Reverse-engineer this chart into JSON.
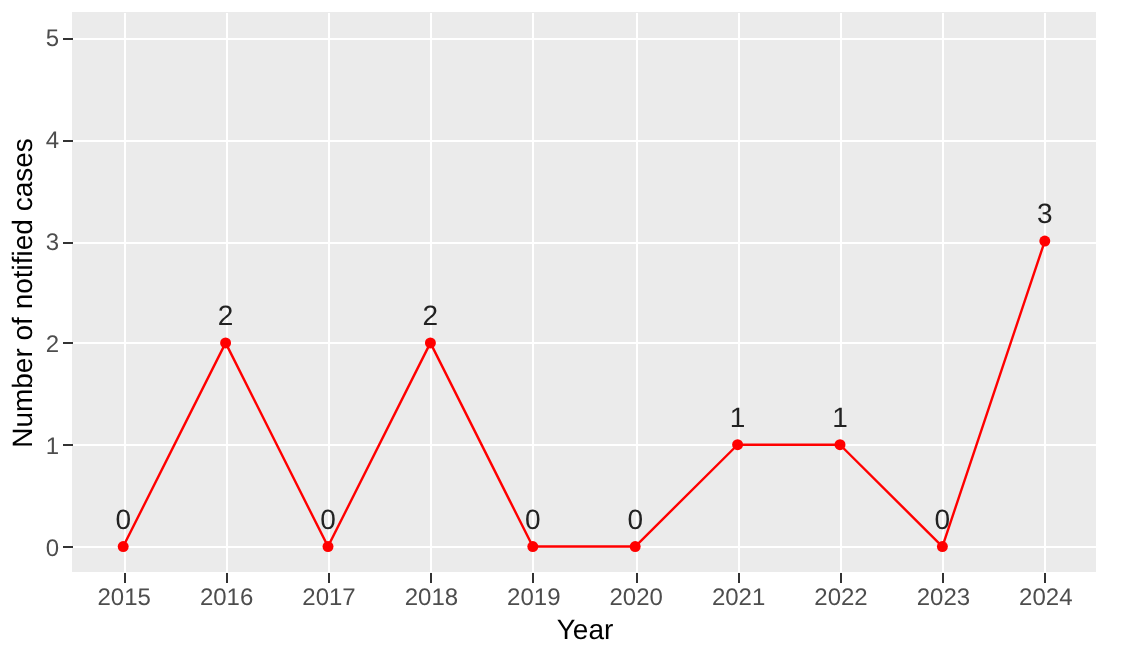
{
  "chart_data": {
    "type": "line",
    "xlabel": "Year",
    "ylabel": "Number of notified cases",
    "categories": [
      "2015",
      "2016",
      "2017",
      "2018",
      "2019",
      "2020",
      "2021",
      "2022",
      "2023",
      "2024"
    ],
    "series": [
      {
        "color": "#ff0000",
        "values": [
          0,
          2,
          0,
          2,
          0,
          0,
          1,
          1,
          0,
          3
        ]
      }
    ],
    "ylim": [
      -0.25,
      5.25
    ],
    "yticks": [
      0,
      1,
      2,
      3,
      4,
      5
    ],
    "grid": true,
    "marker": "circle",
    "line_style": "solid",
    "data_labels": true,
    "legend": false
  }
}
